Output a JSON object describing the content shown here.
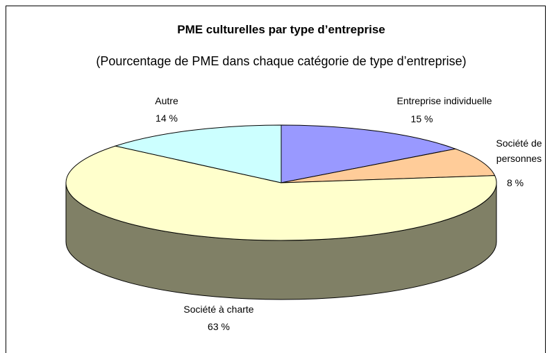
{
  "chart_data": {
    "type": "pie3d",
    "title": "PME culturelles par type d’entreprise",
    "subtitle": "(Pourcentage de PME dans chaque catégorie de type d’entreprise)",
    "categories": [
      "Entreprise individuelle",
      "Société de personnes",
      "Société à charte",
      "Autre"
    ],
    "values": [
      15,
      8,
      63,
      14
    ],
    "value_labels": [
      "15 %",
      "8 %",
      "63 %",
      "14 %"
    ],
    "colors": [
      "#9999ff",
      "#ffcc99",
      "#ffffcc",
      "#ccffff"
    ]
  }
}
